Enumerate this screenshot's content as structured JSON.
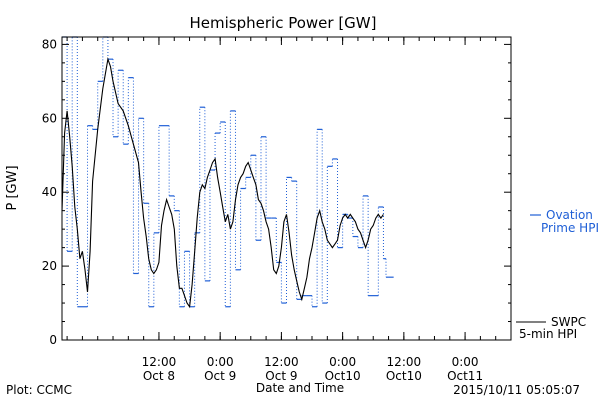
{
  "chart_data": {
    "type": "line",
    "title": "Hemispheric Power [GW]",
    "xlabel": "Date and Time",
    "ylabel": "P [GW]",
    "ylim": [
      0,
      82
    ],
    "yticks": [
      0,
      20,
      40,
      60,
      80
    ],
    "xlim": [
      "2015-10-07 17:00",
      "2015-10-11 09:00"
    ],
    "xticks": [
      {
        "time_label": "12:00",
        "date_label": "Oct 8"
      },
      {
        "time_label": "0:00",
        "date_label": "Oct 9"
      },
      {
        "time_label": "12:00",
        "date_label": "Oct 9"
      },
      {
        "time_label": "0:00",
        "date_label": "Oct10"
      },
      {
        "time_label": "12:00",
        "date_label": "Oct10"
      },
      {
        "time_label": "0:00",
        "date_label": "Oct11"
      }
    ],
    "footer_left": "Plot: CCMC",
    "footer_right": "2015/10/11 05:05:07",
    "legend_placement": "right",
    "series": [
      {
        "name": "Ovation Prime HPI",
        "legend_lines": [
          "Ovation",
          "Prime HPI"
        ],
        "color": "#1f5fd6",
        "style": "step-dotted",
        "points": [
          [
            "2015-10-07 17:00",
            82
          ],
          [
            "2015-10-07 18:00",
            24
          ],
          [
            "2015-10-07 19:00",
            82
          ],
          [
            "2015-10-07 20:00",
            9
          ],
          [
            "2015-10-07 22:00",
            58
          ],
          [
            "2015-10-07 23:00",
            57
          ],
          [
            "2015-10-08 00:00",
            70
          ],
          [
            "2015-10-08 01:00",
            82
          ],
          [
            "2015-10-08 02:00",
            76
          ],
          [
            "2015-10-08 03:00",
            55
          ],
          [
            "2015-10-08 04:00",
            73
          ],
          [
            "2015-10-08 05:00",
            53
          ],
          [
            "2015-10-08 06:00",
            71
          ],
          [
            "2015-10-08 07:00",
            18
          ],
          [
            "2015-10-08 08:00",
            60
          ],
          [
            "2015-10-08 09:00",
            37
          ],
          [
            "2015-10-08 10:00",
            9
          ],
          [
            "2015-10-08 11:00",
            29
          ],
          [
            "2015-10-08 12:00",
            58
          ],
          [
            "2015-10-08 14:00",
            39
          ],
          [
            "2015-10-08 15:00",
            35
          ],
          [
            "2015-10-08 16:00",
            9
          ],
          [
            "2015-10-08 17:00",
            24
          ],
          [
            "2015-10-08 18:00",
            9
          ],
          [
            "2015-10-08 19:00",
            29
          ],
          [
            "2015-10-08 20:00",
            63
          ],
          [
            "2015-10-08 21:00",
            16
          ],
          [
            "2015-10-08 22:00",
            46
          ],
          [
            "2015-10-08 23:00",
            56
          ],
          [
            "2015-10-09 00:00",
            59
          ],
          [
            "2015-10-09 01:00",
            9
          ],
          [
            "2015-10-09 02:00",
            62
          ],
          [
            "2015-10-09 03:00",
            19
          ],
          [
            "2015-10-09 04:00",
            41
          ],
          [
            "2015-10-09 05:00",
            44
          ],
          [
            "2015-10-09 06:00",
            50
          ],
          [
            "2015-10-09 07:00",
            27
          ],
          [
            "2015-10-09 08:00",
            55
          ],
          [
            "2015-10-09 09:00",
            33
          ],
          [
            "2015-10-09 10:00",
            33
          ],
          [
            "2015-10-09 11:00",
            21
          ],
          [
            "2015-10-09 12:00",
            10
          ],
          [
            "2015-10-09 13:00",
            44
          ],
          [
            "2015-10-09 14:00",
            43
          ],
          [
            "2015-10-09 15:00",
            11
          ],
          [
            "2015-10-09 16:00",
            12
          ],
          [
            "2015-10-09 17:00",
            12
          ],
          [
            "2015-10-09 18:00",
            9
          ],
          [
            "2015-10-09 19:00",
            57
          ],
          [
            "2015-10-09 20:00",
            10
          ],
          [
            "2015-10-09 21:00",
            47
          ],
          [
            "2015-10-09 22:00",
            49
          ],
          [
            "2015-10-09 23:00",
            25
          ],
          [
            "2015-10-10 00:00",
            34
          ],
          [
            "2015-10-10 01:00",
            33
          ],
          [
            "2015-10-10 02:00",
            28
          ],
          [
            "2015-10-10 03:00",
            25
          ],
          [
            "2015-10-10 04:00",
            39
          ],
          [
            "2015-10-10 05:00",
            12
          ],
          [
            "2015-10-10 07:00",
            36
          ],
          [
            "2015-10-10 08:00",
            22
          ],
          [
            "2015-10-10 08:30",
            17
          ],
          [
            "2015-10-10 09:00",
            17
          ]
        ]
      },
      {
        "name": "SWPC 5-min HPI",
        "legend_lines": [
          "SWPC",
          "5-min HPI"
        ],
        "color": "#000000",
        "style": "solid",
        "points": [
          [
            "2015-10-07 17:00",
            35
          ],
          [
            "2015-10-07 17:30",
            56
          ],
          [
            "2015-10-07 18:00",
            62
          ],
          [
            "2015-10-07 18:30",
            55
          ],
          [
            "2015-10-07 19:00",
            47
          ],
          [
            "2015-10-07 19:30",
            36
          ],
          [
            "2015-10-07 20:00",
            30
          ],
          [
            "2015-10-07 20:30",
            22
          ],
          [
            "2015-10-07 21:00",
            24
          ],
          [
            "2015-10-07 21:30",
            19
          ],
          [
            "2015-10-07 22:00",
            13
          ],
          [
            "2015-10-07 22:30",
            24
          ],
          [
            "2015-10-07 23:00",
            43
          ],
          [
            "2015-10-08 00:00",
            57
          ],
          [
            "2015-10-08 01:00",
            68
          ],
          [
            "2015-10-08 02:00",
            76
          ],
          [
            "2015-10-08 02:30",
            74
          ],
          [
            "2015-10-08 03:00",
            70
          ],
          [
            "2015-10-08 04:00",
            64
          ],
          [
            "2015-10-08 05:00",
            62
          ],
          [
            "2015-10-08 06:00",
            58
          ],
          [
            "2015-10-08 07:00",
            53
          ],
          [
            "2015-10-08 08:00",
            48
          ],
          [
            "2015-10-08 08:30",
            40
          ],
          [
            "2015-10-08 09:00",
            33
          ],
          [
            "2015-10-08 09:30",
            28
          ],
          [
            "2015-10-08 10:00",
            22
          ],
          [
            "2015-10-08 10:30",
            19
          ],
          [
            "2015-10-08 11:00",
            18
          ],
          [
            "2015-10-08 11:30",
            19
          ],
          [
            "2015-10-08 12:00",
            21
          ],
          [
            "2015-10-08 12:30",
            31
          ],
          [
            "2015-10-08 13:00",
            35
          ],
          [
            "2015-10-08 13:30",
            38
          ],
          [
            "2015-10-08 14:00",
            36
          ],
          [
            "2015-10-08 14:30",
            34
          ],
          [
            "2015-10-08 15:00",
            30
          ],
          [
            "2015-10-08 15:30",
            20
          ],
          [
            "2015-10-08 16:00",
            14
          ],
          [
            "2015-10-08 16:30",
            14
          ],
          [
            "2015-10-08 17:00",
            12
          ],
          [
            "2015-10-08 17:30",
            10
          ],
          [
            "2015-10-08 18:00",
            9
          ],
          [
            "2015-10-08 18:30",
            15
          ],
          [
            "2015-10-08 19:00",
            24
          ],
          [
            "2015-10-08 19:30",
            33
          ],
          [
            "2015-10-08 20:00",
            40
          ],
          [
            "2015-10-08 20:30",
            42
          ],
          [
            "2015-10-08 21:00",
            41
          ],
          [
            "2015-10-08 21:30",
            44
          ],
          [
            "2015-10-08 22:00",
            46
          ],
          [
            "2015-10-08 22:30",
            48
          ],
          [
            "2015-10-08 23:00",
            49
          ],
          [
            "2015-10-08 23:30",
            44
          ],
          [
            "2015-10-09 00:00",
            40
          ],
          [
            "2015-10-09 00:30",
            36
          ],
          [
            "2015-10-09 01:00",
            32
          ],
          [
            "2015-10-09 01:30",
            34
          ],
          [
            "2015-10-09 02:00",
            30
          ],
          [
            "2015-10-09 02:30",
            32
          ],
          [
            "2015-10-09 03:00",
            38
          ],
          [
            "2015-10-09 03:30",
            42
          ],
          [
            "2015-10-09 04:00",
            44
          ],
          [
            "2015-10-09 04:30",
            45
          ],
          [
            "2015-10-09 05:00",
            47
          ],
          [
            "2015-10-09 05:30",
            48
          ],
          [
            "2015-10-09 06:00",
            46
          ],
          [
            "2015-10-09 06:30",
            44
          ],
          [
            "2015-10-09 07:00",
            42
          ],
          [
            "2015-10-09 07:30",
            38
          ],
          [
            "2015-10-09 08:00",
            37
          ],
          [
            "2015-10-09 08:30",
            35
          ],
          [
            "2015-10-09 09:00",
            32
          ],
          [
            "2015-10-09 09:30",
            30
          ],
          [
            "2015-10-09 10:00",
            25
          ],
          [
            "2015-10-09 10:30",
            19
          ],
          [
            "2015-10-09 11:00",
            18
          ],
          [
            "2015-10-09 11:30",
            20
          ],
          [
            "2015-10-09 12:00",
            25
          ],
          [
            "2015-10-09 12:30",
            32
          ],
          [
            "2015-10-09 13:00",
            34
          ],
          [
            "2015-10-09 13:30",
            29
          ],
          [
            "2015-10-09 14:00",
            23
          ],
          [
            "2015-10-09 14:30",
            19
          ],
          [
            "2015-10-09 15:00",
            16
          ],
          [
            "2015-10-09 15:30",
            13
          ],
          [
            "2015-10-09 16:00",
            11
          ],
          [
            "2015-10-09 16:30",
            14
          ],
          [
            "2015-10-09 17:00",
            17
          ],
          [
            "2015-10-09 17:30",
            22
          ],
          [
            "2015-10-09 18:00",
            25
          ],
          [
            "2015-10-09 18:30",
            29
          ],
          [
            "2015-10-09 19:00",
            33
          ],
          [
            "2015-10-09 19:30",
            35
          ],
          [
            "2015-10-09 20:00",
            32
          ],
          [
            "2015-10-09 20:30",
            30
          ],
          [
            "2015-10-09 21:00",
            27
          ],
          [
            "2015-10-09 21:30",
            26
          ],
          [
            "2015-10-09 22:00",
            25
          ],
          [
            "2015-10-09 22:30",
            26
          ],
          [
            "2015-10-09 23:00",
            27
          ],
          [
            "2015-10-09 23:30",
            31
          ],
          [
            "2015-10-10 00:00",
            33
          ],
          [
            "2015-10-10 00:30",
            34
          ],
          [
            "2015-10-10 01:00",
            33
          ],
          [
            "2015-10-10 01:30",
            34
          ],
          [
            "2015-10-10 02:00",
            33
          ],
          [
            "2015-10-10 02:30",
            32
          ],
          [
            "2015-10-10 03:00",
            30
          ],
          [
            "2015-10-10 03:30",
            29
          ],
          [
            "2015-10-10 04:00",
            27
          ],
          [
            "2015-10-10 04:30",
            25
          ],
          [
            "2015-10-10 05:00",
            27
          ],
          [
            "2015-10-10 05:30",
            30
          ],
          [
            "2015-10-10 06:00",
            31
          ],
          [
            "2015-10-10 06:30",
            33
          ],
          [
            "2015-10-10 07:00",
            34
          ],
          [
            "2015-10-10 07:30",
            33
          ],
          [
            "2015-10-10 08:00",
            34
          ]
        ]
      }
    ]
  }
}
